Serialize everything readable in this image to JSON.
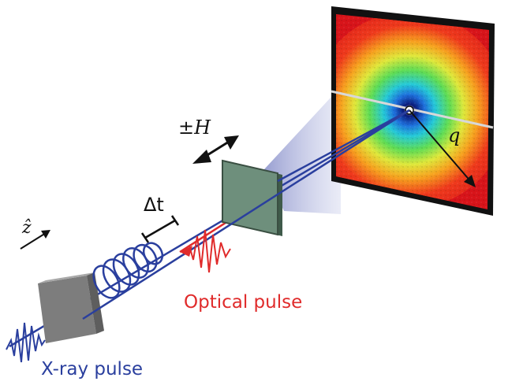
{
  "labels": {
    "field": "±H",
    "direction": "ẑ",
    "delay": "Δt",
    "wavevector": "q",
    "optical_pulse": "Optical pulse",
    "xray_pulse": "X-ray pulse"
  },
  "colors": {
    "xray": "#2a3f9e",
    "optical": "#e02b2b",
    "sample": "#6e8f7c",
    "polarizer": "#8c8c8c",
    "detector_frame": "#111111"
  },
  "icons": {
    "field_axis": "double-arrow-icon",
    "direction": "arrow-icon",
    "delay": "bracket-icon"
  }
}
